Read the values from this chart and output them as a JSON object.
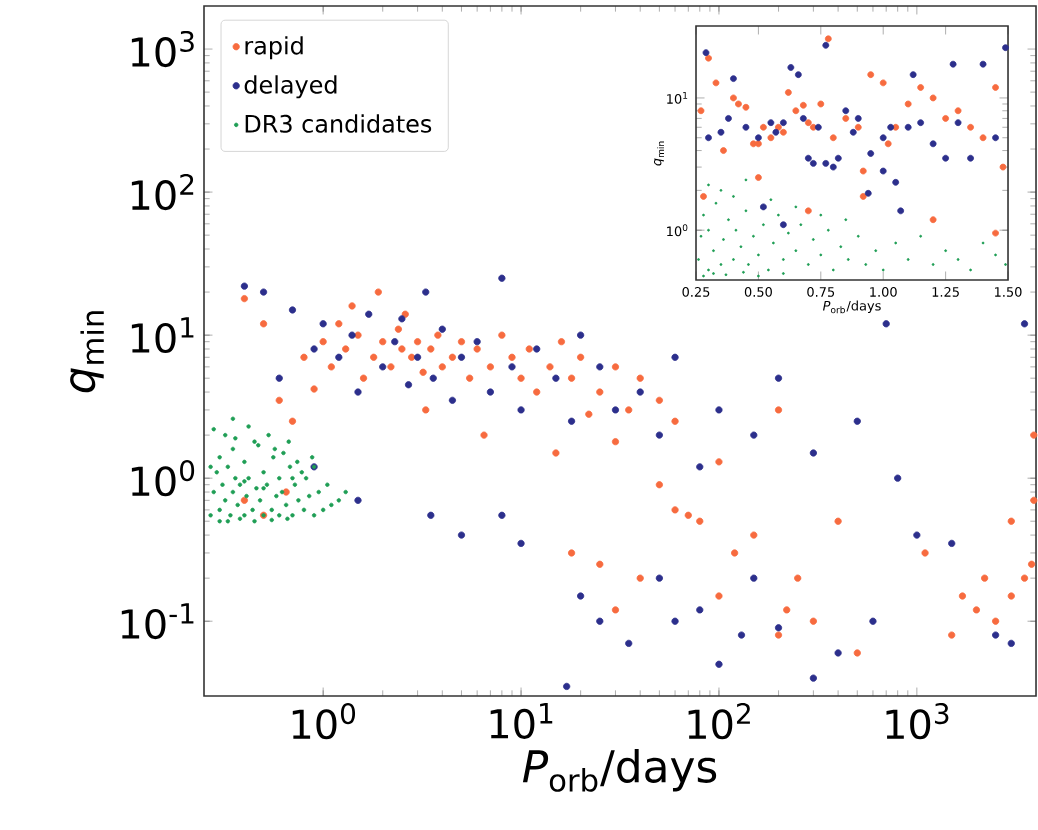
{
  "chart_data": [
    {
      "type": "scatter",
      "xlabel": "*P*$_{orb}$/days",
      "ylabel": "*q*$_{min}$",
      "log": "xy",
      "marker": "circle",
      "legend": "top left",
      "xlim": [
        0.25,
        4000
      ],
      "ylim": [
        0.03,
        2000
      ],
      "xticks": [
        {
          "value": 1,
          "label": "10$^{0}$"
        },
        {
          "value": 10,
          "label": "10$^{1}$"
        },
        {
          "value": 100,
          "label": "10$^{2}$"
        },
        {
          "value": 1000,
          "label": "10$^{3}$"
        }
      ],
      "yticks": [
        {
          "value": 0.1,
          "label": "10$^{-1}$"
        },
        {
          "value": 1,
          "label": "10$^{0}$"
        },
        {
          "value": 10,
          "label": "10$^{1}$"
        },
        {
          "value": 100,
          "label": "10$^{2}$"
        },
        {
          "value": 1000,
          "label": "10$^{3}$"
        }
      ],
      "series": [
        {
          "name": "rapid",
          "color": "#f76b3f",
          "x": [
            0.8,
            1.0,
            1.1,
            1.2,
            1.3,
            1.5,
            1.6,
            1.8,
            2.0,
            2.2,
            2.4,
            2.5,
            2.8,
            3.0,
            3.2,
            3.5,
            3.8,
            4.0,
            4.5,
            5,
            5.5,
            6,
            7,
            8,
            9,
            10,
            11,
            12,
            14,
            16,
            18,
            20,
            25,
            30,
            35,
            40,
            50,
            60,
            0.6,
            0.7,
            1.4,
            2.6,
            0.5,
            0.9,
            3.3,
            6.5,
            15,
            22,
            0.4,
            1.9,
            0.4,
            0.65,
            0.5,
            18,
            25,
            30,
            40,
            50,
            60,
            70,
            80,
            100,
            120,
            150,
            200,
            220,
            250,
            300,
            400,
            500,
            100,
            30,
            200,
            1100,
            2000,
            2500,
            3000,
            3500,
            3800,
            1500,
            3900,
            3900,
            3000,
            1700,
            2200
          ],
          "values": [
            7,
            9,
            6,
            12,
            8,
            10,
            5,
            7,
            9,
            6,
            11,
            8,
            7,
            9,
            5.5,
            8,
            10,
            6,
            7,
            9,
            5,
            8,
            6,
            10,
            7,
            5,
            8,
            4,
            6,
            9,
            5,
            7,
            4,
            6,
            3,
            5,
            3.5,
            2.5,
            3.5,
            2.5,
            16,
            14,
            12,
            4.2,
            3,
            2,
            1.5,
            2.8,
            18,
            20,
            0.7,
            0.8,
            0.55,
            0.3,
            0.25,
            0.12,
            0.2,
            0.9,
            0.6,
            0.55,
            0.5,
            0.15,
            0.3,
            0.4,
            0.08,
            0.12,
            0.2,
            0.1,
            0.5,
            0.06,
            1.3,
            1.8,
            3,
            0.3,
            0.12,
            0.1,
            0.15,
            0.2,
            0.25,
            0.08,
            2,
            0.7,
            0.5,
            0.15,
            0.2
          ]
        },
        {
          "name": "delayed",
          "color": "#2c2f8c",
          "x": [
            0.4,
            0.5,
            0.6,
            0.7,
            0.9,
            1.0,
            1.2,
            1.4,
            1.5,
            1.7,
            2.0,
            2.3,
            2.5,
            2.7,
            3.0,
            3.3,
            3.6,
            4,
            4.5,
            5,
            6,
            7,
            8,
            9,
            10,
            12,
            15,
            18,
            20,
            25,
            30,
            40,
            50,
            60,
            80,
            100,
            150,
            200,
            300,
            500,
            800,
            0.9,
            1.5,
            3.5,
            5,
            8,
            10,
            20,
            25,
            35,
            50,
            60,
            80,
            100,
            130,
            150,
            200,
            300,
            400,
            600,
            1000,
            1500,
            2500,
            3500,
            3000,
            17,
            700
          ],
          "values": [
            22,
            20,
            5,
            15,
            8,
            12,
            7,
            10,
            4,
            14,
            6,
            9,
            13,
            4.5,
            7,
            20,
            5,
            11,
            3.5,
            7,
            9,
            4,
            25,
            6,
            3,
            8,
            5,
            2.5,
            10,
            6,
            3,
            4,
            2,
            7,
            1.2,
            3,
            2,
            5,
            1.5,
            2.5,
            1,
            1.2,
            0.7,
            0.55,
            0.4,
            0.55,
            0.35,
            0.15,
            0.1,
            0.07,
            0.2,
            0.1,
            0.12,
            0.05,
            0.08,
            0.2,
            0.09,
            0.04,
            0.06,
            0.1,
            0.4,
            0.35,
            0.08,
            12,
            0.07,
            0.035,
            12
          ]
        },
        {
          "name": "DR3 candidates",
          "color": "#1f9e55",
          "x": [
            0.27,
            0.28,
            0.29,
            0.3,
            0.3,
            0.31,
            0.32,
            0.33,
            0.34,
            0.35,
            0.35,
            0.36,
            0.37,
            0.38,
            0.4,
            0.4,
            0.41,
            0.42,
            0.44,
            0.45,
            0.46,
            0.48,
            0.5,
            0.5,
            0.52,
            0.55,
            0.56,
            0.58,
            0.6,
            0.6,
            0.62,
            0.65,
            0.68,
            0.7,
            0.72,
            0.75,
            0.8,
            0.82,
            0.85,
            0.9,
            0.95,
            1.0,
            1.05,
            1.1,
            1.2,
            0.28,
            0.32,
            0.36,
            0.42,
            0.47,
            0.53,
            0.57,
            0.63,
            0.67,
            0.74,
            0.78,
            0.88,
            0.3,
            0.38,
            0.45,
            0.55,
            0.66,
            0.27,
            0.33,
            0.4,
            0.5,
            0.7,
            0.9,
            1.3,
            0.35
          ],
          "values": [
            0.55,
            0.8,
            1.1,
            0.6,
            1.4,
            0.9,
            0.7,
            1.2,
            0.55,
            0.8,
            1.6,
            1.0,
            0.65,
            0.9,
            0.55,
            1.3,
            0.75,
            1.0,
            0.6,
            1.8,
            0.85,
            0.7,
            0.55,
            1.1,
            0.9,
            0.6,
            1.4,
            0.75,
            0.55,
            1.0,
            0.8,
            0.65,
            1.2,
            0.55,
            0.9,
            0.7,
            0.6,
            1.0,
            0.75,
            0.55,
            0.8,
            0.6,
            0.9,
            0.65,
            0.7,
            2.2,
            2.0,
            1.9,
            2.3,
            1.7,
            2.0,
            1.6,
            1.5,
            1.8,
            1.3,
            1.1,
            1.4,
            0.5,
            0.52,
            0.5,
            0.51,
            0.52,
            1.2,
            0.5,
            0.95,
            0.85,
            1.0,
            1.2,
            0.8,
            2.6
          ]
        }
      ]
    },
    {
      "type": "scatter",
      "xlabel": "*P*$_{orb}$/days",
      "ylabel": "*q*$_{min}$",
      "log": "y",
      "marker": "circle",
      "xlim": [
        0.25,
        1.5
      ],
      "ylim": [
        0.42,
        35
      ],
      "xticks": [
        {
          "value": 0.25,
          "label": "0.25"
        },
        {
          "value": 0.5,
          "label": "0.50"
        },
        {
          "value": 0.75,
          "label": "0.75"
        },
        {
          "value": 1.0,
          "label": "1.00"
        },
        {
          "value": 1.25,
          "label": "1.25"
        },
        {
          "value": 1.5,
          "label": "1.50"
        }
      ],
      "yticks": [
        {
          "value": 1,
          "label": "10$^{0}$"
        },
        {
          "value": 10,
          "label": "10$^{1}$"
        }
      ],
      "series": [
        {
          "color": "#f76b3f",
          "x": [
            0.27,
            0.3,
            0.33,
            0.36,
            0.4,
            0.42,
            0.45,
            0.48,
            0.5,
            0.52,
            0.55,
            0.58,
            0.6,
            0.62,
            0.65,
            0.68,
            0.7,
            0.72,
            0.75,
            0.78,
            0.8,
            0.85,
            0.9,
            0.92,
            0.95,
            1.0,
            1.02,
            1.05,
            1.1,
            1.15,
            1.2,
            1.25,
            1.3,
            1.35,
            1.4,
            1.45,
            1.48,
            0.28,
            0.5,
            0.7,
            0.92,
            1.2,
            1.45
          ],
          "values": [
            8,
            20,
            13,
            4,
            10,
            9,
            8.5,
            4.5,
            4.5,
            6,
            5,
            6,
            5.5,
            11,
            8,
            8.8,
            6.5,
            6,
            9,
            28,
            5,
            7,
            6,
            2.8,
            15,
            13,
            4.5,
            6,
            9,
            12,
            10,
            7,
            8,
            6,
            5,
            12,
            3,
            1.8,
            2.5,
            1.4,
            1.8,
            1.2,
            0.95
          ]
        },
        {
          "color": "#2c2f8c",
          "x": [
            0.29,
            0.3,
            0.35,
            0.38,
            0.4,
            0.45,
            0.5,
            0.55,
            0.57,
            0.6,
            0.63,
            0.66,
            0.68,
            0.7,
            0.72,
            0.74,
            0.77,
            0.8,
            0.82,
            0.85,
            0.88,
            0.9,
            0.95,
            1.0,
            1.03,
            1.05,
            1.1,
            1.12,
            1.15,
            1.2,
            1.25,
            1.28,
            1.3,
            1.35,
            1.4,
            1.45,
            1.49,
            0.77,
            1.0,
            0.52,
            0.6,
            1.07,
            0.94
          ],
          "values": [
            22,
            5,
            5.5,
            7,
            14,
            6,
            5,
            6.5,
            5.5,
            6.5,
            17,
            15,
            7,
            3.5,
            3.2,
            6,
            25,
            3,
            3.5,
            8,
            5.5,
            7,
            3.8,
            5,
            6,
            2.3,
            6,
            15,
            6.5,
            4.5,
            3.5,
            18,
            6.5,
            3.5,
            18,
            5,
            24,
            3.2,
            2.8,
            1.5,
            1.1,
            1.4,
            1.9
          ]
        },
        {
          "color": "#1f9e55",
          "x": [
            0.26,
            0.27,
            0.28,
            0.3,
            0.3,
            0.32,
            0.33,
            0.35,
            0.36,
            0.38,
            0.4,
            0.41,
            0.43,
            0.45,
            0.46,
            0.48,
            0.5,
            0.52,
            0.54,
            0.56,
            0.58,
            0.6,
            0.62,
            0.65,
            0.67,
            0.7,
            0.72,
            0.75,
            0.78,
            0.8,
            0.83,
            0.86,
            0.9,
            0.93,
            0.97,
            1.0,
            1.05,
            1.1,
            1.15,
            1.2,
            1.25,
            1.3,
            1.35,
            1.4,
            1.45,
            1.49,
            0.3,
            0.35,
            0.4,
            0.45,
            0.55,
            0.65,
            0.75,
            0.85,
            0.28,
            0.32,
            0.37,
            0.44,
            0.5,
            0.6
          ],
          "values": [
            0.6,
            0.9,
            1.3,
            0.5,
            1.0,
            0.7,
            1.6,
            0.55,
            0.85,
            1.2,
            0.6,
            1.0,
            0.75,
            1.4,
            0.55,
            0.9,
            0.65,
            1.1,
            0.5,
            0.8,
            1.3,
            0.6,
            0.95,
            0.7,
            1.1,
            0.55,
            0.85,
            0.65,
            1.0,
            0.5,
            0.75,
            0.6,
            0.9,
            0.55,
            0.7,
            0.5,
            0.8,
            0.6,
            0.9,
            0.55,
            0.7,
            0.6,
            0.5,
            0.8,
            0.65,
            0.55,
            2.2,
            2.0,
            1.8,
            2.4,
            1.7,
            1.5,
            1.3,
            1.2,
            0.45,
            0.47,
            0.46,
            0.48,
            0.45,
            0.47
          ]
        }
      ]
    }
  ]
}
